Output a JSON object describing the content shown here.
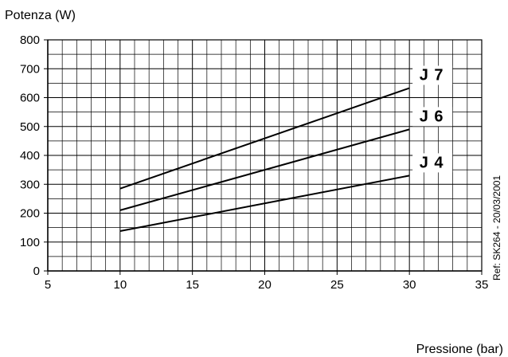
{
  "chart_data": {
    "type": "line",
    "xlabel": "Pressione  (bar)",
    "ylabel": "Potenza (W)",
    "xlim": [
      5,
      35
    ],
    "ylim": [
      0,
      800
    ],
    "x_ticks": [
      5,
      10,
      15,
      20,
      25,
      30,
      35
    ],
    "y_ticks": [
      0,
      100,
      200,
      300,
      400,
      500,
      600,
      700,
      800
    ],
    "grid": true,
    "series": [
      {
        "name": "J 7",
        "x": [
          10,
          30
        ],
        "y": [
          285,
          633
        ]
      },
      {
        "name": "J 6",
        "x": [
          10,
          30
        ],
        "y": [
          210,
          490
        ]
      },
      {
        "name": "J 4",
        "x": [
          10,
          30
        ],
        "y": [
          138,
          330
        ]
      }
    ],
    "annotation": "Ref: SK264 - 20/03/2001"
  }
}
